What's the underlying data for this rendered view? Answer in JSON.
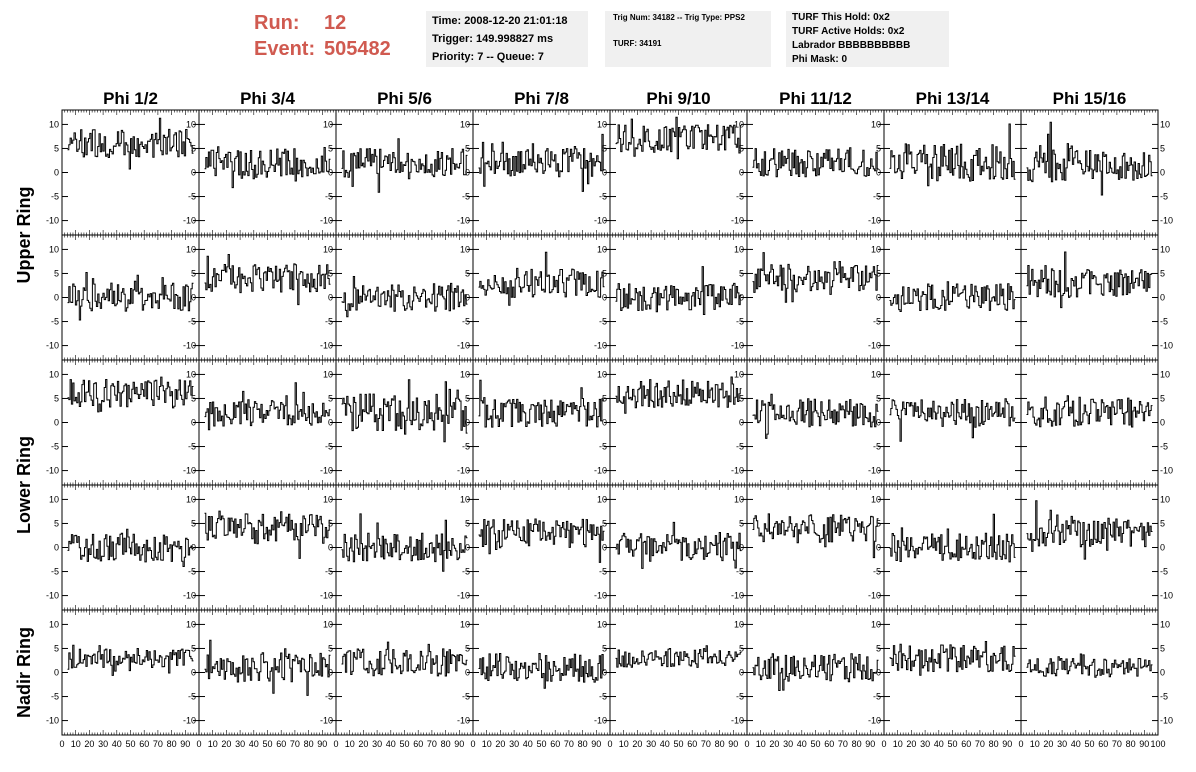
{
  "header": {
    "run_label": "Run:",
    "run_value": "12",
    "event_label": "Event:",
    "event_value": "505482",
    "time": "Time: 2008-12-20 21:01:18",
    "trigger": "Trigger: 149.998827 ms",
    "priority_queue": "Priority: 7 -- Queue: 7",
    "trig_num_type": "Trig Num: 34182 -- Trig Type: PPS2",
    "turf": "TURF: 34191",
    "turf_this_hold": "TURF This Hold: 0x2",
    "turf_active_holds": "TURF Active Holds: 0x2",
    "labrador": "Labrador BBBBBBBBBB",
    "phi_mask": "Phi Mask: 0"
  },
  "colors": {
    "run_text": "#d05a50",
    "info_bg": "#f0f0f0",
    "trace": "#000000"
  },
  "chart_data": {
    "type": "line",
    "columns": [
      "Phi 1/2",
      "Phi 3/4",
      "Phi 5/6",
      "Phi 7/8",
      "Phi 9/10",
      "Phi 11/12",
      "Phi 13/14",
      "Phi 15/16"
    ],
    "rows": [
      "Upper Ring",
      "Upper Ring",
      "Lower Ring",
      "Lower Ring",
      "Nadir Ring"
    ],
    "row_labels": [
      "Upper Ring",
      "Lower Ring",
      "Nadir Ring"
    ],
    "xlim": [
      0,
      100
    ],
    "ylim": [
      -13,
      13
    ],
    "x_ticks": [
      0,
      10,
      20,
      30,
      40,
      50,
      60,
      70,
      80,
      90,
      100
    ],
    "y_ticks": [
      -10,
      -5,
      0,
      5,
      10
    ],
    "grid": false,
    "samples": 96,
    "baselines": [
      [
        6,
        2,
        2,
        2,
        7,
        2,
        2,
        2
      ],
      [
        0,
        4,
        0,
        3,
        0,
        4,
        0,
        3
      ],
      [
        6,
        2,
        2,
        2,
        6,
        2,
        2,
        2
      ],
      [
        0,
        4,
        0,
        3,
        0,
        4,
        0,
        3
      ],
      [
        3,
        1,
        2,
        1,
        3,
        1,
        3,
        1
      ]
    ],
    "amplitudes": [
      [
        3,
        3,
        3,
        3,
        3,
        3,
        4,
        4
      ],
      [
        3,
        3,
        3,
        3,
        3,
        3,
        3,
        3
      ],
      [
        3,
        3,
        4,
        3,
        3,
        3,
        3,
        3
      ],
      [
        3,
        3,
        3,
        3,
        3,
        3,
        3,
        3
      ],
      [
        2,
        3,
        3,
        3,
        2,
        3,
        3,
        2
      ]
    ]
  }
}
